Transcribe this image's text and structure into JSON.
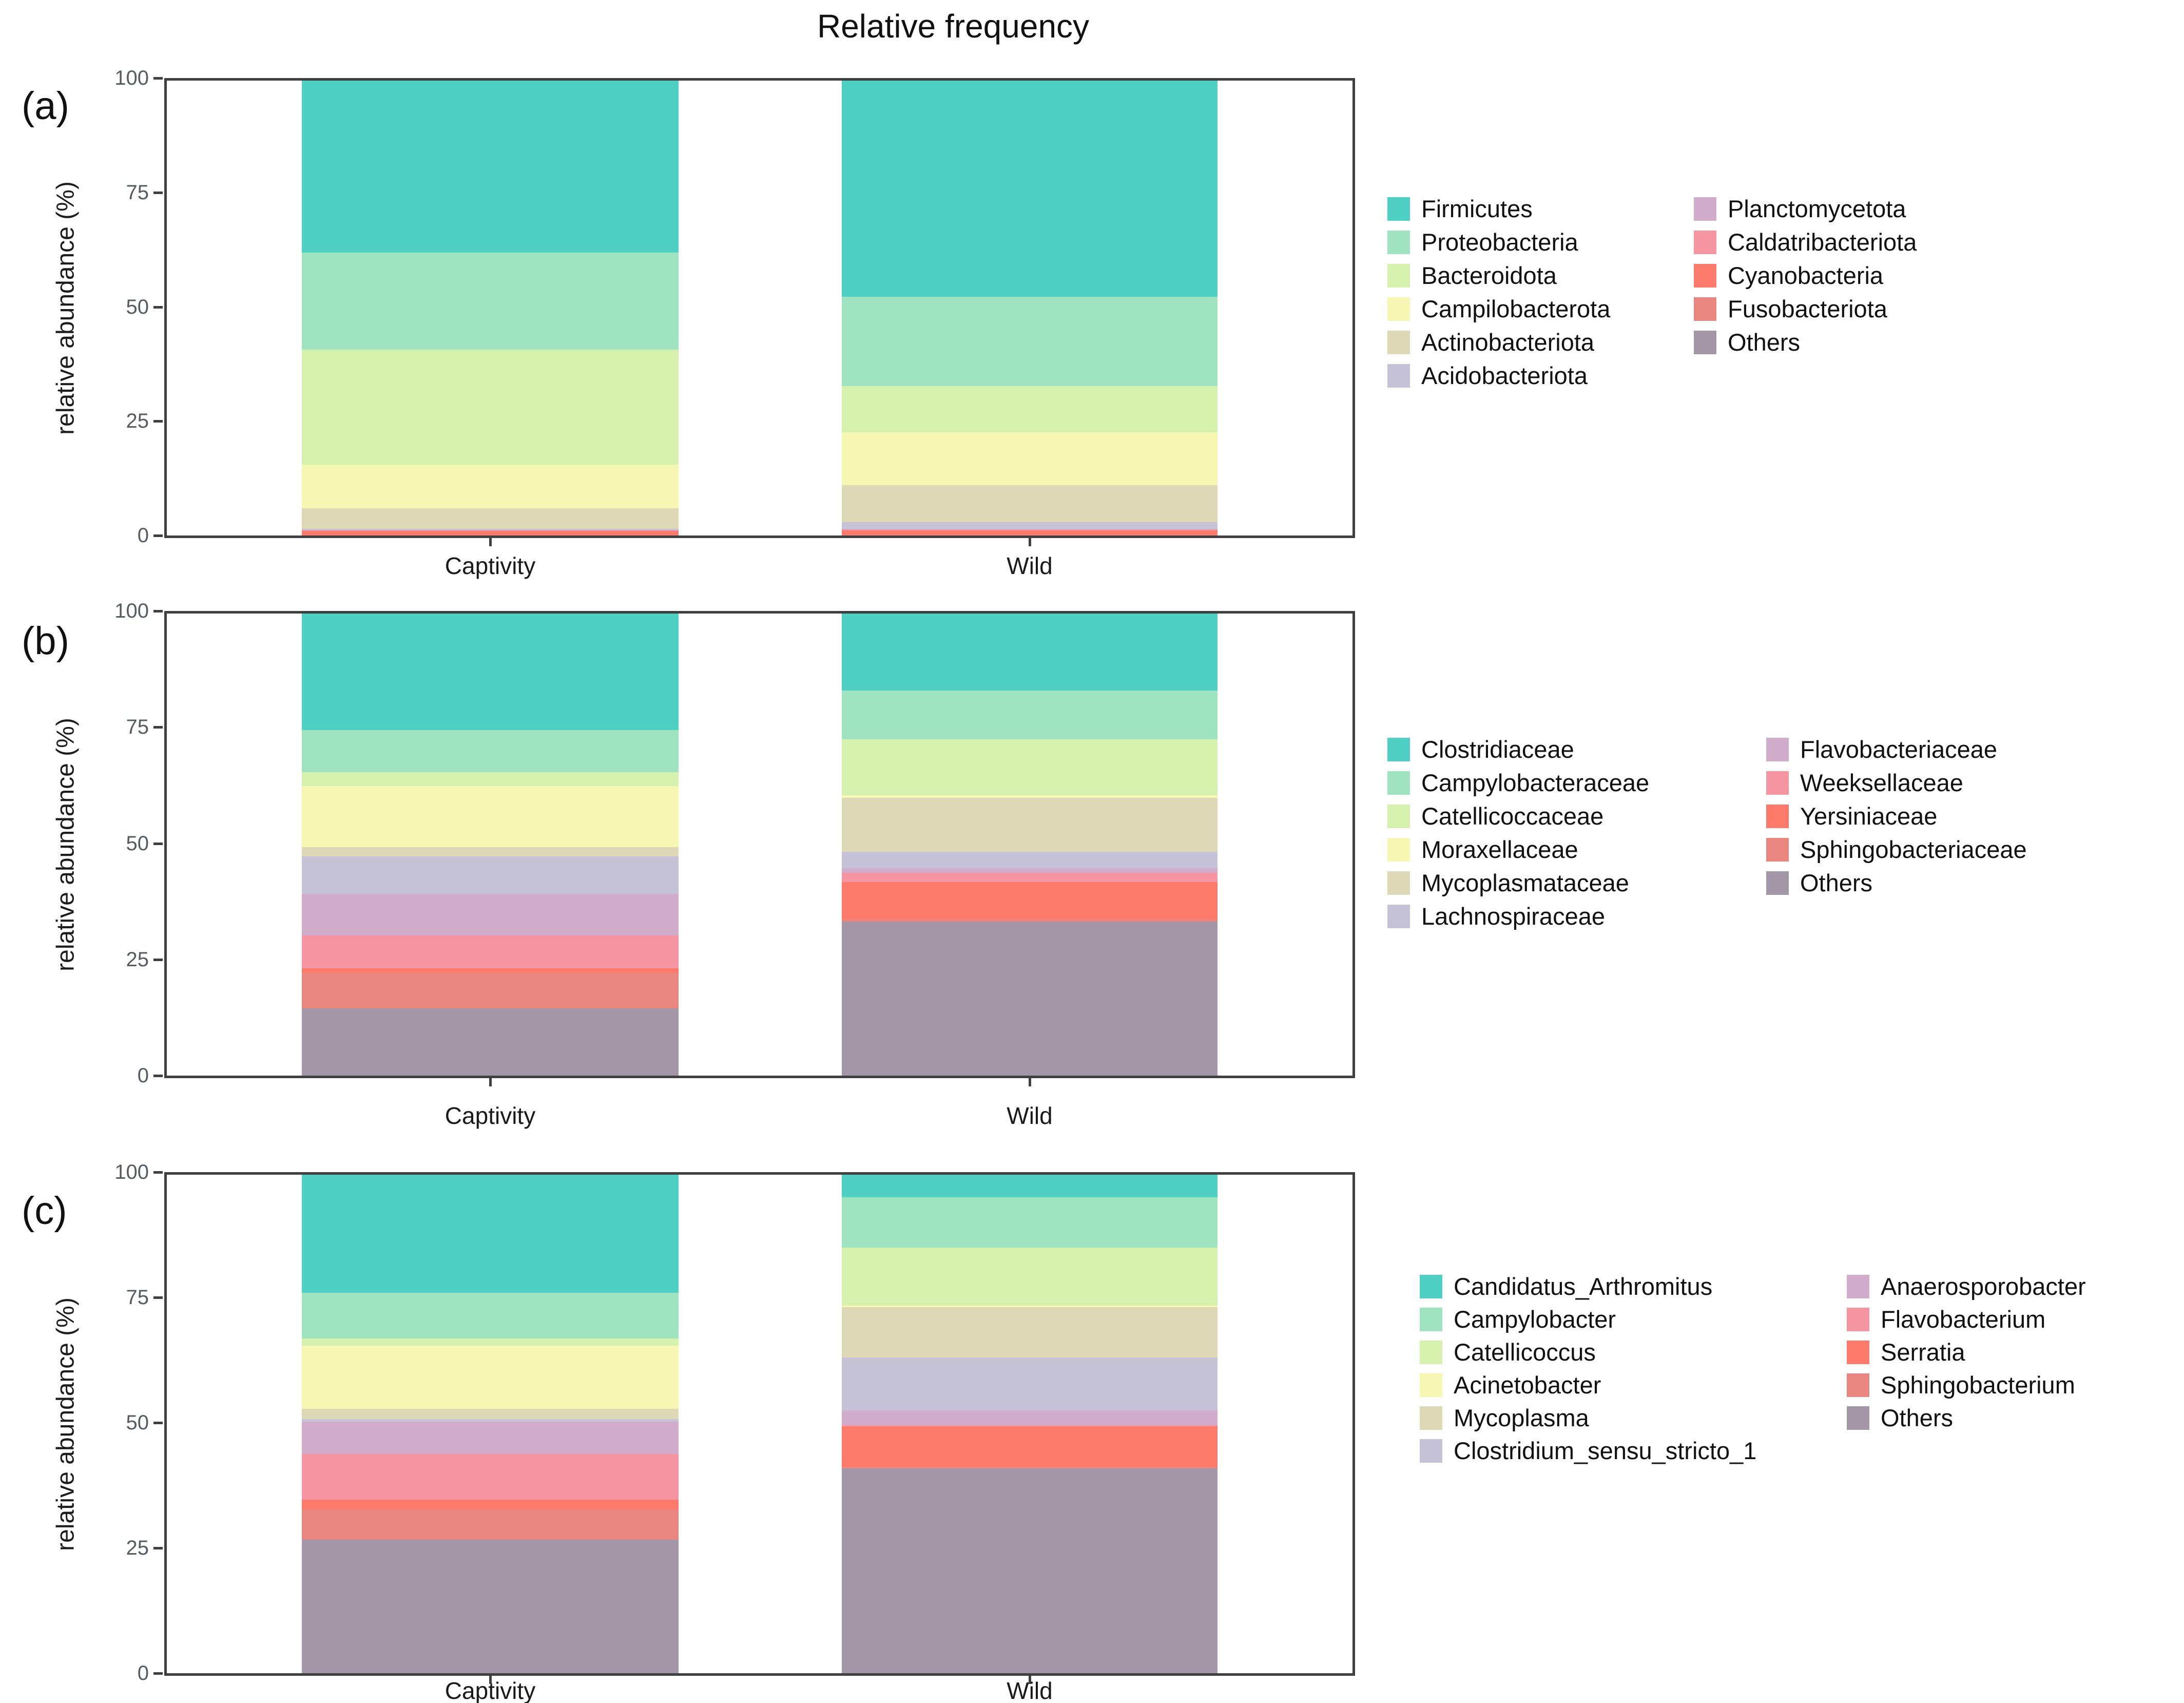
{
  "title": "Relative frequency",
  "y_axis_title": "relative abundance (%)",
  "x_categories": [
    "Captivity",
    "Wild"
  ],
  "y_tick_labels": [
    "100",
    "75",
    "50",
    "25",
    "0"
  ],
  "colors": {
    "teal": "#50cfc4",
    "mint_green": "#9fe3c0",
    "yellow_green": "#d6f0ae",
    "pale_yellow": "#f6f7b3",
    "tan": "#ddd8b5",
    "lavender": "#c6c3d8",
    "mauve": "#d2adcb",
    "pink": "#f495a1",
    "bright_red": "#fc7a6b",
    "dusty_red": "#e8867f",
    "gray_purple": "#a396a7"
  },
  "chart_data": [
    {
      "type": "bar",
      "stacked": true,
      "panel_label": "(a)",
      "categories": [
        "Captivity",
        "Wild"
      ],
      "ylabel": "relative abundance (%)",
      "ylim": [
        0,
        100
      ],
      "y_ticks": [
        100,
        75,
        50,
        25,
        0
      ],
      "legend_position": "right",
      "series": [
        {
          "name": "Firmicutes",
          "color": "#50cfc4",
          "values": [
            38.0,
            47.5
          ]
        },
        {
          "name": "Proteobacteria",
          "color": "#9fe3c0",
          "values": [
            21.0,
            19.5
          ]
        },
        {
          "name": "Bacteroidota",
          "color": "#d6f0ae",
          "values": [
            25.0,
            10.0
          ]
        },
        {
          "name": "Campilobacterota",
          "color": "#f6f7b3",
          "values": [
            9.5,
            11.5
          ]
        },
        {
          "name": "Actinobacteriota",
          "color": "#ddd8b5",
          "values": [
            4.5,
            8.0
          ]
        },
        {
          "name": "Acidobacteriota",
          "color": "#c6c3d8",
          "values": [
            0.2,
            1.5
          ]
        },
        {
          "name": "Planctomycetota",
          "color": "#d2adcb",
          "values": [
            0.1,
            0.2
          ]
        },
        {
          "name": "Caldatribacteriota",
          "color": "#f495a1",
          "values": [
            0.1,
            0.1
          ]
        },
        {
          "name": "Cyanobacteria",
          "color": "#fc7a6b",
          "values": [
            1.0,
            1.0
          ]
        },
        {
          "name": "Fusobacteriota",
          "color": "#e8867f",
          "values": [
            0.1,
            0.2
          ]
        },
        {
          "name": "Others",
          "color": "#a396a7",
          "values": [
            0.5,
            0.5
          ]
        }
      ]
    },
    {
      "type": "bar",
      "stacked": true,
      "panel_label": "(b)",
      "categories": [
        "Captivity",
        "Wild"
      ],
      "ylabel": "relative abundance (%)",
      "ylim": [
        0,
        100
      ],
      "y_ticks": [
        100,
        75,
        50,
        25,
        0
      ],
      "legend_position": "right",
      "series": [
        {
          "name": "Clostridiaceae",
          "color": "#50cfc4",
          "values": [
            25.5,
            17.0
          ]
        },
        {
          "name": "Campylobacteraceae",
          "color": "#9fe3c0",
          "values": [
            9.0,
            10.5
          ]
        },
        {
          "name": "Catellicoccaceae",
          "color": "#d6f0ae",
          "values": [
            3.0,
            12.0
          ]
        },
        {
          "name": "Moraxellaceae",
          "color": "#f6f7b3",
          "values": [
            13.0,
            0.5
          ]
        },
        {
          "name": "Mycoplasmataceae",
          "color": "#ddd8b5",
          "values": [
            2.0,
            11.5
          ]
        },
        {
          "name": "Lachnospiraceae",
          "color": "#c6c3d8",
          "values": [
            8.0,
            3.5
          ]
        },
        {
          "name": "Flavobacteriaceae",
          "color": "#d2adcb",
          "values": [
            9.0,
            1.0
          ]
        },
        {
          "name": "Weeksellaceae",
          "color": "#f495a1",
          "values": [
            7.0,
            2.0
          ]
        },
        {
          "name": "Yersiniaceae",
          "color": "#fc7a6b",
          "values": [
            1.0,
            8.0
          ]
        },
        {
          "name": "Sphingobacteriaceae",
          "color": "#e8867f",
          "values": [
            7.5,
            0.5
          ]
        },
        {
          "name": "Others",
          "color": "#a396a7",
          "values": [
            15.0,
            33.5
          ]
        }
      ]
    },
    {
      "type": "bar",
      "stacked": true,
      "panel_label": "(c)",
      "categories": [
        "Captivity",
        "Wild"
      ],
      "ylabel": "relative abundance (%)",
      "ylim": [
        0,
        100
      ],
      "y_ticks": [
        100,
        75,
        50,
        25,
        0
      ],
      "legend_position": "right",
      "series": [
        {
          "name": "Candidatus_Arthromitus",
          "color": "#50cfc4",
          "values": [
            24.0,
            5.0
          ]
        },
        {
          "name": "Campylobacter",
          "color": "#9fe3c0",
          "values": [
            9.0,
            10.0
          ]
        },
        {
          "name": "Catellicoccus",
          "color": "#d6f0ae",
          "values": [
            1.5,
            11.5
          ]
        },
        {
          "name": "Acinetobacter",
          "color": "#f6f7b3",
          "values": [
            12.5,
            0.3
          ]
        },
        {
          "name": "Mycoplasma",
          "color": "#ddd8b5",
          "values": [
            2.0,
            10.0
          ]
        },
        {
          "name": "Clostridium_sensu_stricto_1",
          "color": "#c6c3d8",
          "values": [
            0.5,
            10.5
          ]
        },
        {
          "name": "Anaerosporobacter",
          "color": "#d2adcb",
          "values": [
            6.5,
            3.0
          ]
        },
        {
          "name": "Flavobacterium",
          "color": "#f495a1",
          "values": [
            9.0,
            0.2
          ]
        },
        {
          "name": "Serratia",
          "color": "#fc7a6b",
          "values": [
            2.0,
            8.0
          ]
        },
        {
          "name": "Sphingobacterium",
          "color": "#e8867f",
          "values": [
            6.0,
            0.3
          ]
        },
        {
          "name": "Others",
          "color": "#a396a7",
          "values": [
            27.0,
            41.2
          ]
        }
      ]
    }
  ]
}
